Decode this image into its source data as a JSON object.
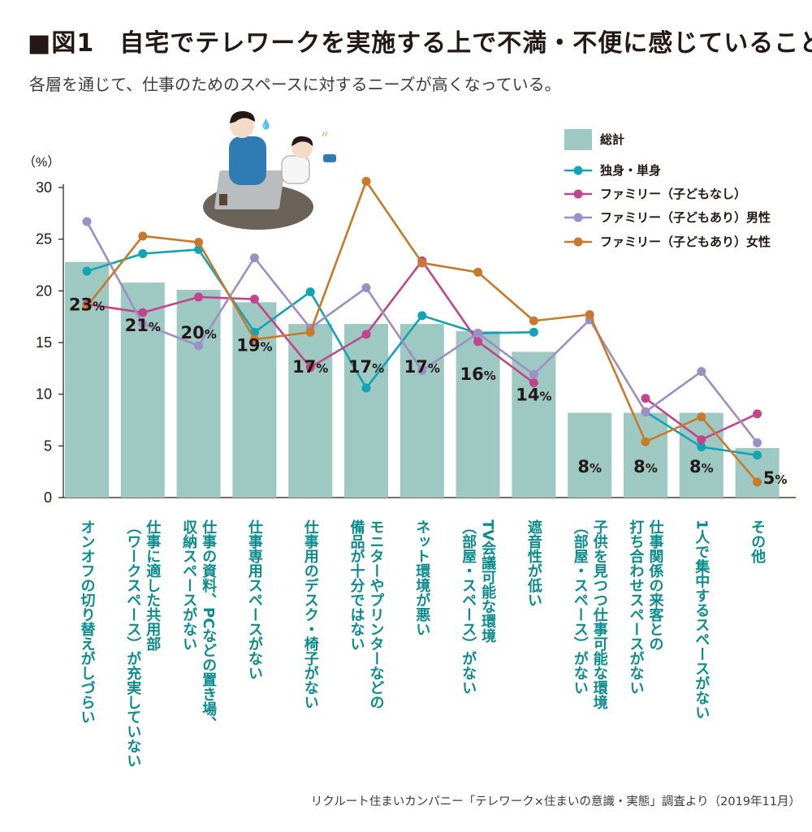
{
  "header": {
    "title": "■図1　自宅でテレワークを実施する上で不満・不便に感じていること",
    "subtitle": "各層を通じて、仕事のためのスペースに対するニーズが高くなっている。",
    "source": "リクルート住まいカンパニー「テレワーク×住まいの意識・実態」調査より（2019年11月）"
  },
  "colors": {
    "bar": "#9ec9c3",
    "single": "#12a3b4",
    "family_no_child": "#c2458b",
    "family_child_male": "#9c8fc4",
    "family_child_female": "#c9792b",
    "category_text": "#0d8c8e"
  },
  "chart_data": {
    "type": "bar",
    "yunit": "（%）",
    "ylim": [
      0,
      30
    ],
    "yticks": [
      0,
      5,
      10,
      15,
      20,
      25,
      30
    ],
    "grid": false,
    "legend_position": "top-right",
    "categories": [
      [
        "オンオフの切り替えがしづらい"
      ],
      [
        "仕事に適した共用部",
        "（ワークスペース）が充実していない"
      ],
      [
        "仕事の資料、PCなどの置き場、",
        "収納スペースがない"
      ],
      [
        "仕事専用スペースがない"
      ],
      [
        "仕事用のデスク・椅子がない"
      ],
      [
        "モニターやプリンターなどの",
        "備品が十分ではない"
      ],
      [
        "ネット環境が悪い"
      ],
      [
        "TV会議可能な環境",
        "（部屋・スペース）がない"
      ],
      [
        "遮音性が低い"
      ],
      [
        "子供を見つつ仕事可能な環境",
        "（部屋・スペース）がない"
      ],
      [
        "仕事関係の来客との",
        "打ち合わせスペースがない"
      ],
      [
        "1人で集中するスペースがない"
      ],
      [
        "その他"
      ]
    ],
    "totals": {
      "name": "総計",
      "values": [
        22.8,
        20.8,
        20.1,
        18.9,
        16.8,
        16.8,
        16.8,
        16.1,
        14.1,
        8.2,
        8.2,
        8.2,
        4.8
      ],
      "labels": [
        "23%",
        "21%",
        "20%",
        "19%",
        "17%",
        "17%",
        "17%",
        "16%",
        "14%",
        "8%",
        "8%",
        "8%",
        "5%"
      ]
    },
    "series": [
      {
        "name": "独身・単身",
        "values": [
          21.9,
          23.6,
          24.0,
          16.0,
          19.9,
          10.6,
          17.6,
          15.9,
          16.0,
          null,
          8.3,
          4.9,
          4.1
        ]
      },
      {
        "name": "ファミリー（子どもなし）",
        "values": [
          18.7,
          17.9,
          19.4,
          19.2,
          12.6,
          15.8,
          22.9,
          15.1,
          11.1,
          null,
          9.6,
          5.6,
          8.1
        ]
      },
      {
        "name": "ファミリー（子どもあり）男性",
        "values": [
          26.7,
          16.8,
          14.7,
          23.2,
          16.4,
          20.3,
          12.3,
          15.9,
          11.9,
          17.2,
          8.3,
          12.2,
          5.3
        ]
      },
      {
        "name": "ファミリー（子どもあり）女性",
        "values": [
          18.5,
          25.3,
          24.7,
          15.3,
          16.0,
          30.6,
          22.7,
          21.8,
          17.1,
          17.7,
          5.4,
          7.8,
          1.5
        ]
      }
    ]
  },
  "legend": {
    "total": "総計",
    "single": "独身・単身",
    "family_no_child": "ファミリー（子どもなし）",
    "family_child_male": "ファミリー（子どもあり）男性",
    "family_child_female": "ファミリー（子どもあり）女性"
  },
  "illustration": {
    "name": "telework-family-illustration"
  }
}
